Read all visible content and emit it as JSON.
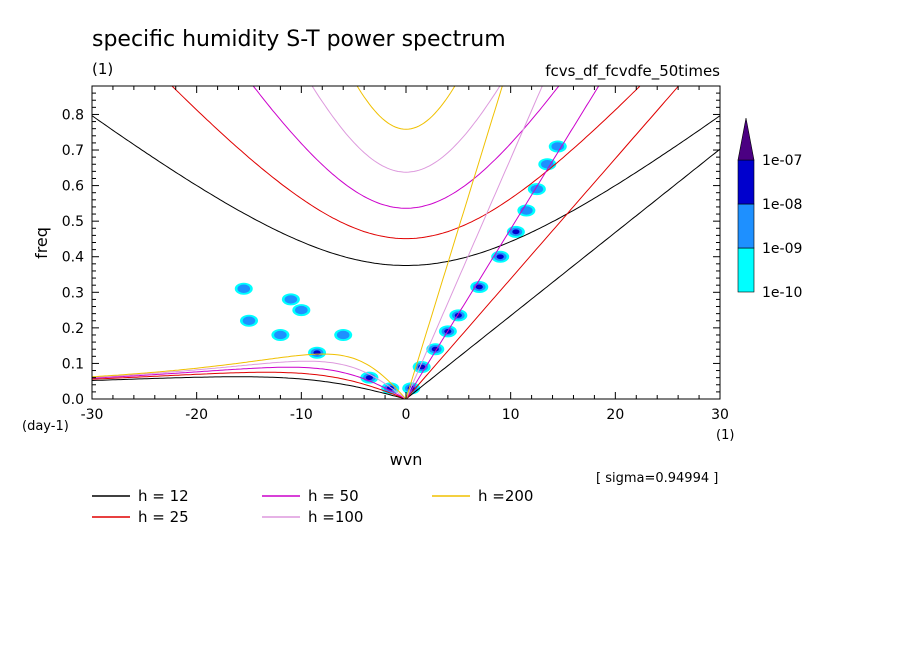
{
  "chart_data": {
    "type": "contour",
    "title": "specific humidity S-T power spectrum",
    "subtitle_left": "(1)",
    "subtitle_right": "fcvs_df_fcvdfe_50times",
    "xlabel": "wvn",
    "ylabel": "freq",
    "x_unit": "(1)",
    "y_unit": "(day-1)",
    "xlim": [
      -30,
      30
    ],
    "ylim": [
      0,
      0.88
    ],
    "xticks": [
      "-30",
      "-20",
      "-10",
      "0",
      "10",
      "20",
      "30"
    ],
    "yticks": [
      "0.0",
      "0.1",
      "0.2",
      "0.3",
      "0.4",
      "0.5",
      "0.6",
      "0.7",
      "0.8"
    ],
    "annotation": "[ sigma=0.94994 ]",
    "colorbar": {
      "labels": [
        "1e-07",
        "1e-08",
        "1e-09",
        "1e-10"
      ],
      "colors": [
        "#00ffff",
        "#1e90ff",
        "#0000cd",
        "#4b0082"
      ]
    },
    "dispersion_curves": [
      {
        "name": "h = 12",
        "h": 12,
        "color": "#000000"
      },
      {
        "name": "h = 25",
        "h": 25,
        "color": "#e00000"
      },
      {
        "name": "h = 50",
        "h": 50,
        "color": "#cc00cc"
      },
      {
        "name": "h =100",
        "h": 100,
        "color": "#dd99dd"
      },
      {
        "name": "h =200",
        "h": 200,
        "color": "#f0c000"
      }
    ],
    "spectral_blobs": [
      {
        "x": -1.5,
        "y": 0.03,
        "level": 2
      },
      {
        "x": -3.5,
        "y": 0.06,
        "level": 2
      },
      {
        "x": 0.5,
        "y": 0.03,
        "level": 2
      },
      {
        "x": 1.5,
        "y": 0.09,
        "level": 3
      },
      {
        "x": 2.8,
        "y": 0.14,
        "level": 3
      },
      {
        "x": 4.0,
        "y": 0.19,
        "level": 3
      },
      {
        "x": 5.0,
        "y": 0.235,
        "level": 3
      },
      {
        "x": 7.0,
        "y": 0.315,
        "level": 3
      },
      {
        "x": 9.0,
        "y": 0.4,
        "level": 2
      },
      {
        "x": 10.5,
        "y": 0.47,
        "level": 2
      },
      {
        "x": 11.5,
        "y": 0.53,
        "level": 1
      },
      {
        "x": 12.5,
        "y": 0.59,
        "level": 1
      },
      {
        "x": 13.5,
        "y": 0.66,
        "level": 1
      },
      {
        "x": 14.5,
        "y": 0.71,
        "level": 1
      },
      {
        "x": -8.5,
        "y": 0.13,
        "level": 2
      },
      {
        "x": -12.0,
        "y": 0.18,
        "level": 1
      },
      {
        "x": -15.0,
        "y": 0.22,
        "level": 1
      },
      {
        "x": -11.0,
        "y": 0.28,
        "level": 1
      },
      {
        "x": -15.5,
        "y": 0.31,
        "level": 1
      },
      {
        "x": -10.0,
        "y": 0.25,
        "level": 1
      },
      {
        "x": -6.0,
        "y": 0.18,
        "level": 1
      }
    ]
  }
}
